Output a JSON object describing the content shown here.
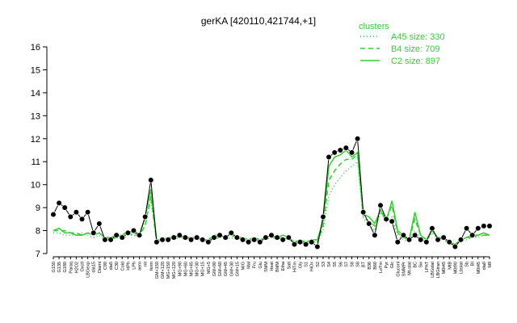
{
  "chart_data": {
    "type": "line",
    "title": "gerKA [420110,421744,+1]",
    "legend_title": "clusters",
    "categories": [
      "G150",
      "G135",
      "G180",
      "Paraq",
      "H2O2",
      "Oxctl",
      "LBGexp",
      "dia15",
      "Diami",
      "C90",
      "dia5",
      "C30",
      "Cold",
      "HPh",
      "LPh",
      "aero",
      "nit",
      "ferm",
      "GM+150",
      "GM+120",
      "MG+150",
      "MG+120",
      "MG+90",
      "MG+60",
      "MG+45",
      "MG+30",
      "MG+15",
      "MG+5",
      "GM+90",
      "GM+60",
      "GM+45",
      "GM+30",
      "GM+15",
      "M/G",
      "Mal",
      "Fru",
      "Glu",
      "SMM",
      "Heat",
      "BMM",
      "Etha",
      "Salt",
      "HiTm",
      "Gly",
      "S1",
      "HiOx",
      "S2",
      "S3",
      "S4",
      "S5",
      "S6",
      "S7",
      "S8",
      "S8",
      "BT",
      "B36",
      "B60",
      "LoTm",
      "Pyr",
      "Glc",
      "Gluconl",
      "SMMPr",
      "Mt-stat",
      "BC",
      "Sw",
      "LPhT",
      "LBGstat",
      "LBGtran",
      "M0t45",
      "MtB",
      "M0t90",
      "Lbstat",
      "Sb",
      "BI",
      "M0t45",
      "dia0",
      "M9"
    ],
    "values": [
      8.7,
      9.2,
      9.0,
      8.6,
      8.8,
      8.5,
      8.8,
      7.9,
      8.3,
      7.6,
      7.6,
      7.8,
      7.7,
      7.9,
      8.0,
      7.8,
      8.6,
      10.2,
      7.5,
      7.6,
      7.6,
      7.7,
      7.8,
      7.7,
      7.6,
      7.7,
      7.6,
      7.5,
      7.7,
      7.8,
      7.7,
      7.9,
      7.7,
      7.6,
      7.5,
      7.6,
      7.5,
      7.7,
      7.8,
      7.7,
      7.6,
      7.7,
      7.4,
      7.5,
      7.4,
      7.5,
      7.3,
      8.6,
      11.2,
      11.4,
      11.5,
      11.6,
      11.4,
      12.0,
      8.8,
      8.3,
      7.8,
      9.1,
      8.5,
      8.4,
      7.5,
      7.8,
      7.6,
      7.8,
      7.6,
      7.5,
      8.1,
      7.6,
      7.7,
      7.5,
      7.3,
      7.6,
      8.1,
      7.8,
      8.1,
      8.2,
      8.2
    ],
    "color": "#000000",
    "series": [
      {
        "name": "A45 size: 330",
        "color": "#33cc33",
        "dash": "dotted",
        "values": [
          7.9,
          7.9,
          7.8,
          7.8,
          7.8,
          7.9,
          7.8,
          7.7,
          7.8,
          7.6,
          7.6,
          7.7,
          7.6,
          7.8,
          7.8,
          7.7,
          8.3,
          9.3,
          7.5,
          7.5,
          7.6,
          7.6,
          7.7,
          7.6,
          7.6,
          7.6,
          7.6,
          7.5,
          7.6,
          7.7,
          7.6,
          7.7,
          7.6,
          7.6,
          7.5,
          7.6,
          7.5,
          7.6,
          7.7,
          7.6,
          7.7,
          7.6,
          7.5,
          7.5,
          7.5,
          7.5,
          7.5,
          8.0,
          9.5,
          10.0,
          10.3,
          10.6,
          10.8,
          11.0,
          8.5,
          8.3,
          8.0,
          8.8,
          8.4,
          8.6,
          7.8,
          7.6,
          7.5,
          8.0,
          7.7,
          7.5,
          7.9,
          7.6,
          7.6,
          7.4,
          7.4,
          7.5,
          7.6,
          7.7,
          7.7,
          7.8,
          7.8
        ]
      },
      {
        "name": "B4 size: 709",
        "color": "#33cc33",
        "dash": "dashed",
        "values": [
          8.0,
          8.0,
          8.0,
          7.9,
          7.9,
          7.8,
          7.9,
          7.8,
          7.9,
          7.7,
          7.6,
          7.7,
          7.7,
          7.9,
          7.8,
          7.8,
          8.2,
          9.5,
          7.5,
          7.6,
          7.6,
          7.7,
          7.7,
          7.7,
          7.6,
          7.7,
          7.6,
          7.6,
          7.7,
          7.7,
          7.7,
          7.8,
          7.7,
          7.6,
          7.6,
          7.6,
          7.6,
          7.7,
          7.7,
          7.7,
          7.7,
          7.7,
          7.5,
          7.5,
          7.5,
          7.6,
          7.5,
          8.2,
          10.2,
          10.6,
          10.9,
          11.1,
          11.1,
          11.3,
          8.6,
          8.4,
          8.2,
          8.9,
          8.5,
          9.1,
          7.9,
          7.7,
          7.6,
          8.5,
          7.8,
          7.6,
          8.0,
          7.7,
          7.6,
          7.5,
          7.4,
          7.6,
          7.7,
          7.7,
          7.8,
          7.8,
          7.8
        ]
      },
      {
        "name": "C2 size: 897",
        "color": "#33cc33",
        "dash": "solid",
        "values": [
          8.0,
          8.1,
          7.9,
          7.9,
          7.8,
          7.8,
          7.9,
          7.8,
          7.9,
          7.7,
          7.7,
          7.8,
          7.8,
          8.0,
          7.9,
          7.8,
          8.6,
          9.8,
          7.6,
          7.6,
          7.7,
          7.7,
          7.8,
          7.7,
          7.7,
          7.7,
          7.6,
          7.6,
          7.8,
          7.8,
          7.7,
          7.9,
          7.7,
          7.7,
          7.6,
          7.7,
          7.6,
          7.7,
          7.8,
          7.7,
          7.8,
          7.7,
          7.5,
          7.6,
          7.5,
          7.6,
          7.6,
          8.4,
          10.8,
          11.2,
          11.3,
          11.5,
          11.2,
          11.4,
          8.7,
          8.6,
          8.3,
          8.9,
          8.4,
          9.3,
          8.0,
          7.8,
          7.6,
          8.8,
          7.8,
          7.6,
          8.0,
          7.7,
          7.7,
          7.5,
          7.4,
          7.6,
          7.7,
          7.8,
          7.8,
          7.9,
          7.8
        ]
      }
    ],
    "ylim": [
      7,
      16
    ],
    "yticks": [
      7,
      8,
      9,
      10,
      11,
      12,
      13,
      14,
      15,
      16
    ]
  }
}
